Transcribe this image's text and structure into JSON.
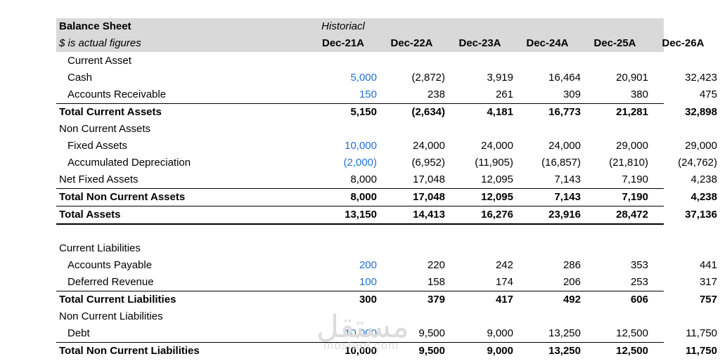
{
  "header": {
    "title": "Balance Sheet",
    "subtitle": "$ is actual figures",
    "historical_label": "Historiacl",
    "columns": [
      "Dec-21A",
      "Dec-22A",
      "Dec-23A",
      "Dec-24A",
      "Dec-25A",
      "Dec-26A"
    ]
  },
  "rows": [
    {
      "label": "Current Asset",
      "values": [
        "",
        "",
        "",
        "",
        "",
        ""
      ]
    },
    {
      "label": "Cash",
      "values": [
        "5,000",
        "(2,872)",
        "3,919",
        "16,464",
        "20,901",
        "32,423"
      ]
    },
    {
      "label": "Accounts Receivable",
      "values": [
        "150",
        "238",
        "261",
        "309",
        "380",
        "475"
      ]
    },
    {
      "label": "Total Current Assets",
      "values": [
        "5,150",
        "(2,634)",
        "4,181",
        "16,773",
        "21,281",
        "32,898"
      ]
    },
    {
      "label": "Non Current Assets",
      "values": [
        "",
        "",
        "",
        "",
        "",
        ""
      ]
    },
    {
      "label": "Fixed Assets",
      "values": [
        "10,000",
        "24,000",
        "24,000",
        "24,000",
        "29,000",
        "29,000"
      ]
    },
    {
      "label": "Accumulated Depreciation",
      "values": [
        "(2,000)",
        "(6,952)",
        "(11,905)",
        "(16,857)",
        "(21,810)",
        "(24,762)"
      ]
    },
    {
      "label": "Net Fixed Assets",
      "values": [
        "8,000",
        "17,048",
        "12,095",
        "7,143",
        "7,190",
        "4,238"
      ]
    },
    {
      "label": "Total Non Current Assets",
      "values": [
        "8,000",
        "17,048",
        "12,095",
        "7,143",
        "7,190",
        "4,238"
      ]
    },
    {
      "label": "Total Assets",
      "values": [
        "13,150",
        "14,413",
        "16,276",
        "23,916",
        "28,472",
        "37,136"
      ]
    },
    {
      "label": "",
      "values": [
        "",
        "",
        "",
        "",
        "",
        ""
      ]
    },
    {
      "label": "Current Liabilities",
      "values": [
        "",
        "",
        "",
        "",
        "",
        ""
      ]
    },
    {
      "label": "Accounts Payable",
      "values": [
        "200",
        "220",
        "242",
        "286",
        "353",
        "441"
      ]
    },
    {
      "label": "Deferred Revenue",
      "values": [
        "100",
        "158",
        "174",
        "206",
        "253",
        "317"
      ]
    },
    {
      "label": "Total Current Liabilities",
      "values": [
        "300",
        "379",
        "417",
        "492",
        "606",
        "757"
      ]
    },
    {
      "label": "Non Current Liabilities",
      "values": [
        "",
        "",
        "",
        "",
        "",
        ""
      ]
    },
    {
      "label": "Debt",
      "values": [
        "10,000",
        "9,500",
        "9,000",
        "13,250",
        "12,500",
        "11,750"
      ]
    },
    {
      "label": "Total Non Current Liabilities",
      "values": [
        "10,000",
        "9,500",
        "9,000",
        "13,250",
        "12,500",
        "11,750"
      ]
    }
  ],
  "watermark": {
    "arabic": "مستقل",
    "latin": "mostaql.com"
  },
  "colors": {
    "header_bg": "#d9d9d9",
    "input_blue": "#1f6fd1"
  }
}
